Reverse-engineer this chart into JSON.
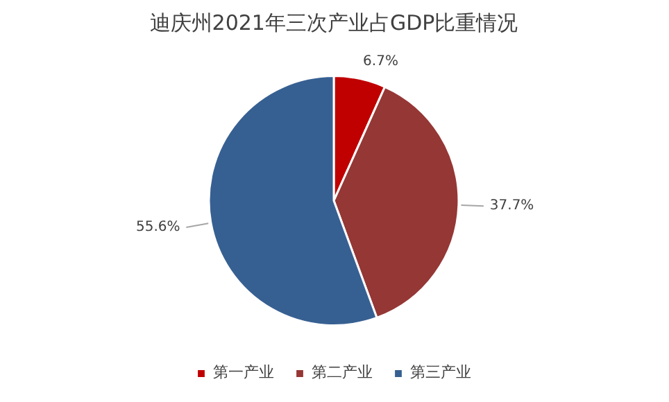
{
  "chart_data": {
    "type": "pie",
    "title": "迪庆州2021年三次产业占GDP比重情况",
    "categories": [
      "第一产业",
      "第二产业",
      "第三产业"
    ],
    "values": [
      6.7,
      37.7,
      55.6
    ],
    "colors": [
      "#c00000",
      "#953735",
      "#376092"
    ],
    "value_labels": [
      "6.7%",
      "37.7%",
      "55.6%"
    ],
    "legend": "bottom"
  }
}
